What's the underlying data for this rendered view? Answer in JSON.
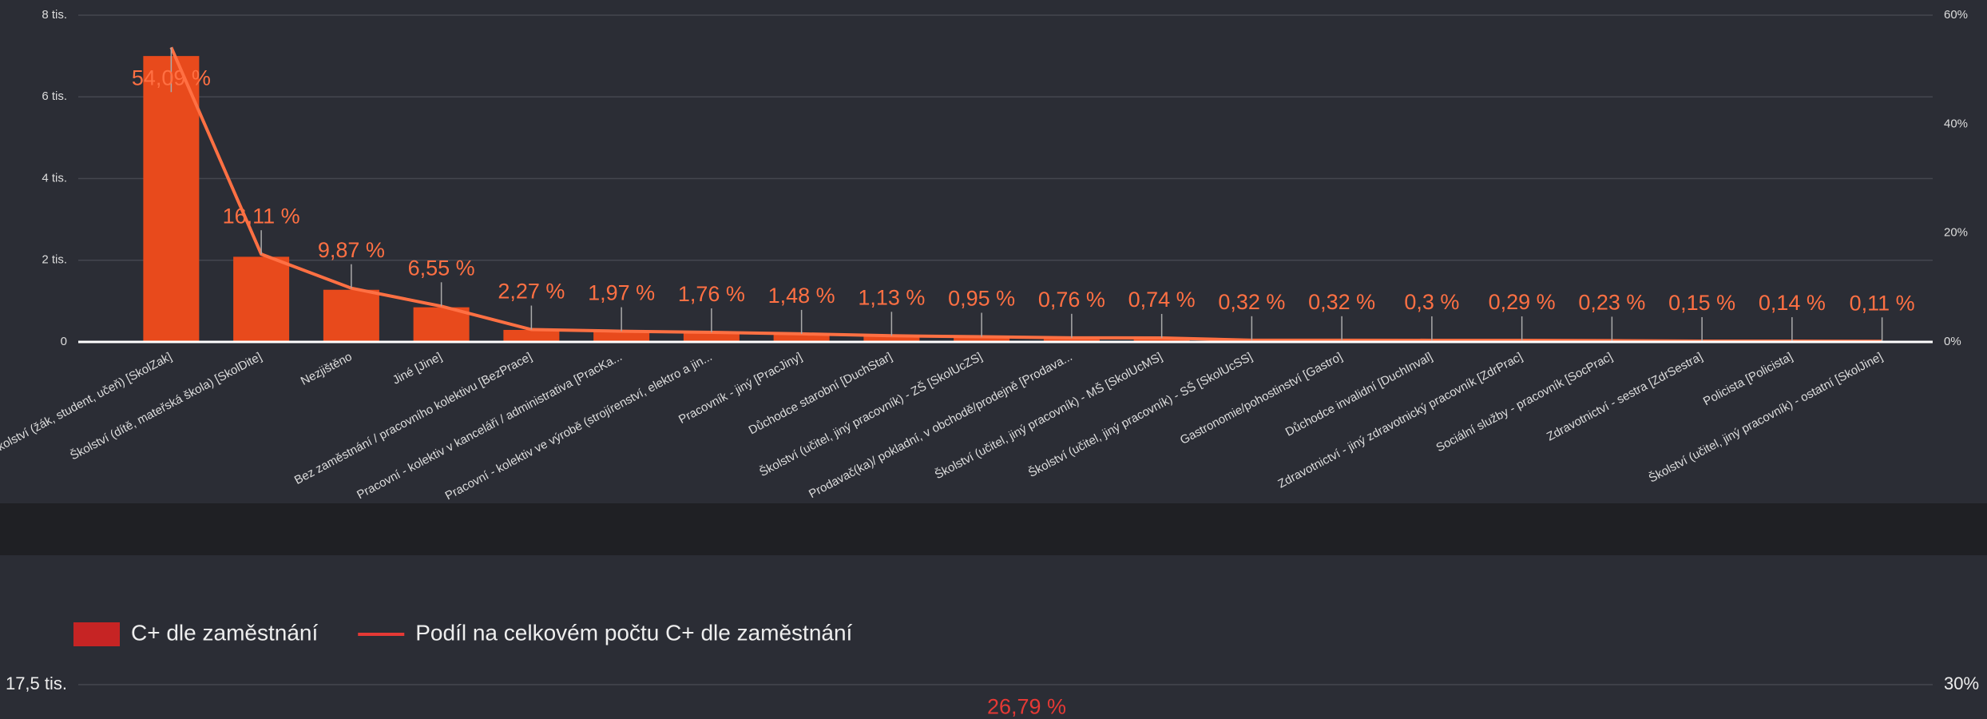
{
  "chart_data": [
    {
      "type": "bar",
      "categories": [
        "Školství (žák, student, učeň) [SkolZak]",
        "Školství (dítě, mateřská škola) [SkolDite]",
        "Nezjištěno",
        "Jiné [Jine]",
        "Bez zaměstnání / pracovního kolektivu [BezPrace]",
        "Pracovní - kolektiv v kanceláři / administrativa [PracKa...",
        "Pracovní - kolektiv ve výrobě (strojírenství, elektro a jin...",
        "Pracovník - jiný [PracJiny]",
        "Důchodce starobní [DuchStar]",
        "Školství (učitel, jiný pracovník) - ZŠ [SkolUcZS]",
        "Prodavač(ka)/ pokladní, v obchodě/prodejně [Prodava...",
        "Školství (učitel, jiný pracovník) - MŠ [SkolUcMS]",
        "Školství (učitel, jiný pracovník) - SŠ [SkolUcSS]",
        "Gastronomie/pohostinství [Gastro]",
        "Důchodce invalidní [DuchInval]",
        "Zdravotnictví - jiný zdravotnický pracovník [ZdrPrac]",
        "Sociální služby - pracovník [SocPrac]",
        "Zdravotnictví - sestra [ZdrSestra]",
        "Policista [Policista]",
        "Školství (učitel, jiný pracovník) - ostatní [SkolJine]"
      ],
      "series": [
        {
          "color": "#e84a1c",
          "values": [
            7000,
            2085,
            1277,
            848,
            294,
            255,
            228,
            192,
            146,
            123,
            98,
            96,
            41,
            41,
            39,
            38,
            30,
            19,
            18,
            14
          ]
        },
        {
          "color": "#ff7043",
          "axis": "y2",
          "values": [
            54.09,
            16.11,
            9.87,
            6.55,
            2.27,
            1.97,
            1.76,
            1.48,
            1.13,
            0.95,
            0.76,
            0.74,
            0.32,
            0.32,
            0.3,
            0.29,
            0.23,
            0.15,
            0.14,
            0.11
          ],
          "value_labels": [
            "54,09 %",
            "16,11 %",
            "9,87 %",
            "6,55 %",
            "2,27 %",
            "1,97 %",
            "1,76 %",
            "1,48 %",
            "1,13 %",
            "0,95 %",
            "0,76 %",
            "0,74 %",
            "0,32 %",
            "0,32 %",
            "0,3 %",
            "0,29 %",
            "0,23 %",
            "0,15 %",
            "0,14 %",
            "0,11 %"
          ]
        }
      ],
      "ylim": [
        0,
        8000
      ],
      "yticks": [
        0,
        {
          "value": 2000,
          "label": "2 tis."
        },
        {
          "value": 4000,
          "label": "4 tis."
        },
        {
          "value": 6000,
          "label": "6 tis."
        },
        {
          "value": 8000,
          "label": "8 tis."
        }
      ],
      "y2lim": [
        0,
        60
      ],
      "y2ticks": [
        {
          "value": 0,
          "label": "0%"
        },
        {
          "value": 20,
          "label": "20%"
        },
        {
          "value": 40,
          "label": "40%"
        },
        {
          "value": 60,
          "label": "60%"
        }
      ],
      "grid": true
    },
    {
      "type": "bar",
      "categories": [
        null
      ],
      "series": [
        {
          "name": "C+ dle zaměstnání",
          "color": "#c62424",
          "values": [
            null
          ]
        },
        {
          "name": "Podíl na celkovém počtu C+ dle zaměstnání",
          "color": "#e53935",
          "axis": "y2",
          "values": [
            26.79
          ],
          "value_labels": [
            "26,79 %"
          ]
        }
      ],
      "ylim": [
        0,
        17500
      ],
      "yticks": [
        {
          "value": 17500,
          "label": "17,5 tis."
        }
      ],
      "y2lim": [
        0,
        30
      ],
      "y2ticks": [
        {
          "value": 30,
          "label": "30%"
        }
      ],
      "grid": true,
      "legend": "top-left"
    }
  ]
}
